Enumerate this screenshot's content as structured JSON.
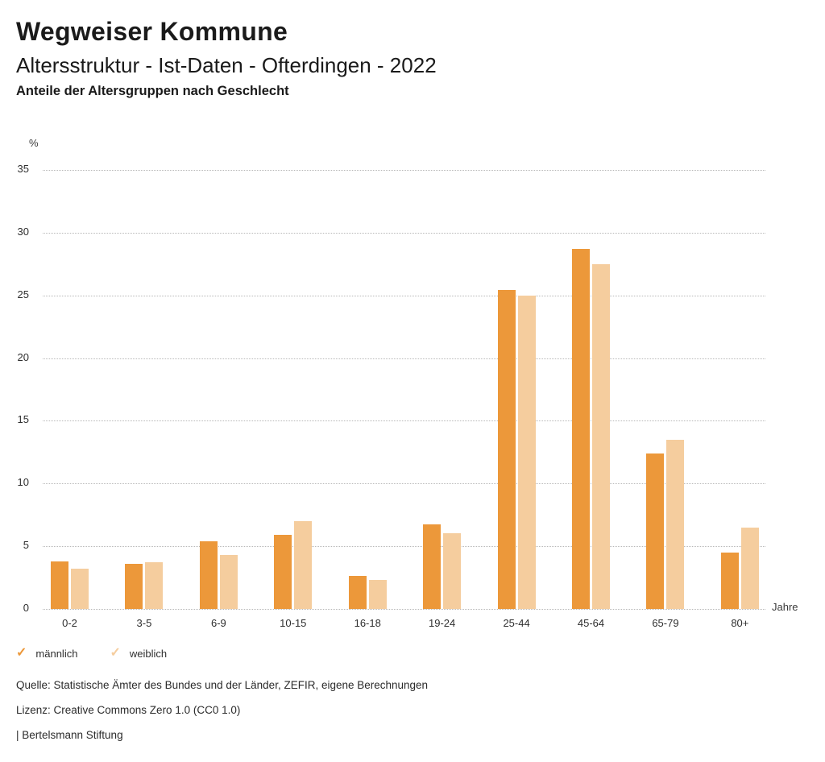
{
  "header": {
    "title": "Wegweiser Kommune",
    "subtitle": "Altersstruktur - Ist-Daten - Ofterdingen - 2022",
    "chart_heading": "Anteile der Altersgruppen nach Geschlecht"
  },
  "chart_data": {
    "type": "bar",
    "title": "Anteile der Altersgruppen nach Geschlecht",
    "categories": [
      "0-2",
      "3-5",
      "6-9",
      "10-15",
      "16-18",
      "19-24",
      "25-44",
      "45-64",
      "65-79",
      "80+"
    ],
    "series": [
      {
        "name": "männlich",
        "color": "#EC983A",
        "values": [
          3.8,
          3.6,
          5.4,
          5.9,
          2.6,
          6.7,
          25.4,
          28.7,
          12.4,
          4.5
        ]
      },
      {
        "name": "weiblich",
        "color": "#F5CD9E",
        "values": [
          3.2,
          3.7,
          4.3,
          7.0,
          2.3,
          6.0,
          25.0,
          27.5,
          13.5,
          6.5
        ]
      }
    ],
    "xlabel": "Jahre",
    "ylabel": "%",
    "ylim": [
      0,
      35
    ],
    "yticks": [
      0,
      5,
      10,
      15,
      20,
      25,
      30,
      35
    ],
    "grid": "horizontal-dotted",
    "legend_position": "bottom-left",
    "legend_marker": "check-icon"
  },
  "footer": {
    "source": "Quelle: Statistische Ämter des Bundes und der Länder, ZEFIR, eigene Berechnungen",
    "license": "Lizenz: Creative Commons Zero 1.0 (CC0 1.0)",
    "attribution": "| Bertelsmann Stiftung"
  }
}
